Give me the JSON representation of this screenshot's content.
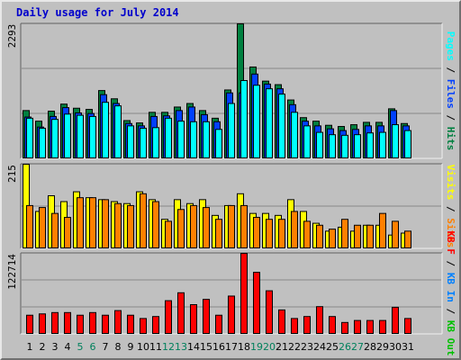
{
  "title": "Daily usage for July 2014",
  "colors": {
    "background": "#c0c0c0",
    "hits": "#008040",
    "files": "#0040ff",
    "pages": "#00ffff",
    "visits": "#ffff00",
    "sites": "#ff8000",
    "kb_in": "#0080ff",
    "kb_out": "#00c000",
    "kb_f": "#ff0000",
    "weekend_day": "#00805c",
    "weekday_day": "#000000",
    "grid": "#888888"
  },
  "chart_data": [
    {
      "type": "bar",
      "panel": "top",
      "y_max_label": "2293",
      "ylim": [
        0,
        2293
      ],
      "right_labels": [
        {
          "text": "Pages",
          "color": "#00ffff"
        },
        {
          "text": " / ",
          "color": "#000000"
        },
        {
          "text": "Files",
          "color": "#0040ff"
        },
        {
          "text": " / ",
          "color": "#000000"
        },
        {
          "text": "Hits",
          "color": "#008040"
        }
      ],
      "x": [
        1,
        2,
        3,
        4,
        5,
        6,
        7,
        8,
        9,
        10,
        11,
        12,
        13,
        14,
        15,
        16,
        17,
        18,
        19,
        20,
        21,
        22,
        23,
        24,
        25,
        26,
        27,
        28,
        29,
        30,
        31
      ],
      "series": [
        {
          "name": "Hits",
          "values": [
            820,
            640,
            810,
            930,
            860,
            840,
            1160,
            1020,
            650,
            610,
            790,
            790,
            880,
            940,
            820,
            690,
            1170,
            2293,
            1560,
            1320,
            1260,
            1000,
            700,
            640,
            570,
            550,
            580,
            620,
            620,
            850,
            600
          ]
        },
        {
          "name": "Files",
          "values": [
            710,
            540,
            720,
            870,
            780,
            770,
            1090,
            940,
            600,
            560,
            720,
            730,
            820,
            880,
            750,
            630,
            1120,
            1120,
            1440,
            1270,
            1190,
            920,
            640,
            560,
            510,
            480,
            500,
            560,
            560,
            820,
            560
          ]
        },
        {
          "name": "Pages",
          "values": [
            690,
            520,
            670,
            760,
            740,
            720,
            960,
            900,
            560,
            520,
            530,
            690,
            640,
            630,
            630,
            500,
            940,
            1330,
            1250,
            1190,
            1100,
            790,
            560,
            450,
            410,
            400,
            410,
            440,
            450,
            580,
            480
          ]
        }
      ]
    },
    {
      "type": "bar",
      "panel": "middle",
      "y_max_label": "215",
      "ylim": [
        0,
        215
      ],
      "right_labels": [
        {
          "text": "Visits",
          "color": "#ffff00"
        },
        {
          "text": " / ",
          "color": "#000000"
        },
        {
          "text": "Sites",
          "color": "#ff8000"
        }
      ],
      "x": [
        1,
        2,
        3,
        4,
        5,
        6,
        7,
        8,
        9,
        10,
        11,
        12,
        13,
        14,
        15,
        16,
        17,
        18,
        19,
        20,
        21,
        22,
        23,
        24,
        25,
        26,
        27,
        28,
        29,
        30,
        31
      ],
      "series": [
        {
          "name": "Visits",
          "values": [
            215,
            95,
            135,
            120,
            145,
            130,
            125,
            120,
            115,
            145,
            125,
            75,
            125,
            115,
            125,
            85,
            110,
            140,
            90,
            90,
            85,
            125,
            95,
            65,
            45,
            55,
            45,
            60,
            60,
            35,
            40
          ]
        },
        {
          "name": "Sites",
          "values": [
            110,
            105,
            90,
            80,
            130,
            130,
            125,
            115,
            110,
            140,
            120,
            70,
            100,
            110,
            105,
            75,
            110,
            110,
            80,
            75,
            75,
            95,
            70,
            60,
            50,
            75,
            60,
            60,
            90,
            70,
            45
          ]
        }
      ]
    },
    {
      "type": "bar",
      "panel": "bottom",
      "y_max_label": "122714",
      "ylim": [
        0,
        122714
      ],
      "right_labels": [
        {
          "text": "KB F",
          "color": "#ff0000"
        },
        {
          "text": " / ",
          "color": "#000000"
        },
        {
          "text": "KB In",
          "color": "#0080ff"
        },
        {
          "text": " / ",
          "color": "#000000"
        },
        {
          "text": "KB Out",
          "color": "#00c000"
        }
      ],
      "x": [
        1,
        2,
        3,
        4,
        5,
        6,
        7,
        8,
        9,
        10,
        11,
        12,
        13,
        14,
        15,
        16,
        17,
        18,
        19,
        20,
        21,
        22,
        23,
        24,
        25,
        26,
        27,
        28,
        29,
        30,
        31
      ],
      "series": [
        {
          "name": "KB F",
          "values": [
            29000,
            31000,
            33000,
            33000,
            29000,
            33000,
            29000,
            36000,
            29000,
            24000,
            27000,
            51000,
            63000,
            45000,
            53000,
            29000,
            58000,
            122714,
            94000,
            66000,
            37000,
            24000,
            27000,
            42000,
            27000,
            18000,
            21000,
            21000,
            21000,
            41000,
            24000
          ]
        }
      ]
    }
  ],
  "days": [
    {
      "label": "1",
      "weekend": false
    },
    {
      "label": "2",
      "weekend": false
    },
    {
      "label": "3",
      "weekend": false
    },
    {
      "label": "4",
      "weekend": false
    },
    {
      "label": "5",
      "weekend": true
    },
    {
      "label": "6",
      "weekend": true
    },
    {
      "label": "7",
      "weekend": false
    },
    {
      "label": "8",
      "weekend": false
    },
    {
      "label": "9",
      "weekend": false
    },
    {
      "label": "10",
      "weekend": false
    },
    {
      "label": "11",
      "weekend": false
    },
    {
      "label": "12",
      "weekend": true
    },
    {
      "label": "13",
      "weekend": true
    },
    {
      "label": "14",
      "weekend": false
    },
    {
      "label": "15",
      "weekend": false
    },
    {
      "label": "16",
      "weekend": false
    },
    {
      "label": "17",
      "weekend": false
    },
    {
      "label": "18",
      "weekend": false
    },
    {
      "label": "19",
      "weekend": true
    },
    {
      "label": "20",
      "weekend": true
    },
    {
      "label": "21",
      "weekend": false
    },
    {
      "label": "22",
      "weekend": false
    },
    {
      "label": "23",
      "weekend": false
    },
    {
      "label": "24",
      "weekend": false
    },
    {
      "label": "25",
      "weekend": false
    },
    {
      "label": "26",
      "weekend": true
    },
    {
      "label": "27",
      "weekend": true
    },
    {
      "label": "28",
      "weekend": false
    },
    {
      "label": "29",
      "weekend": false
    },
    {
      "label": "30",
      "weekend": false
    },
    {
      "label": "31",
      "weekend": false
    }
  ]
}
